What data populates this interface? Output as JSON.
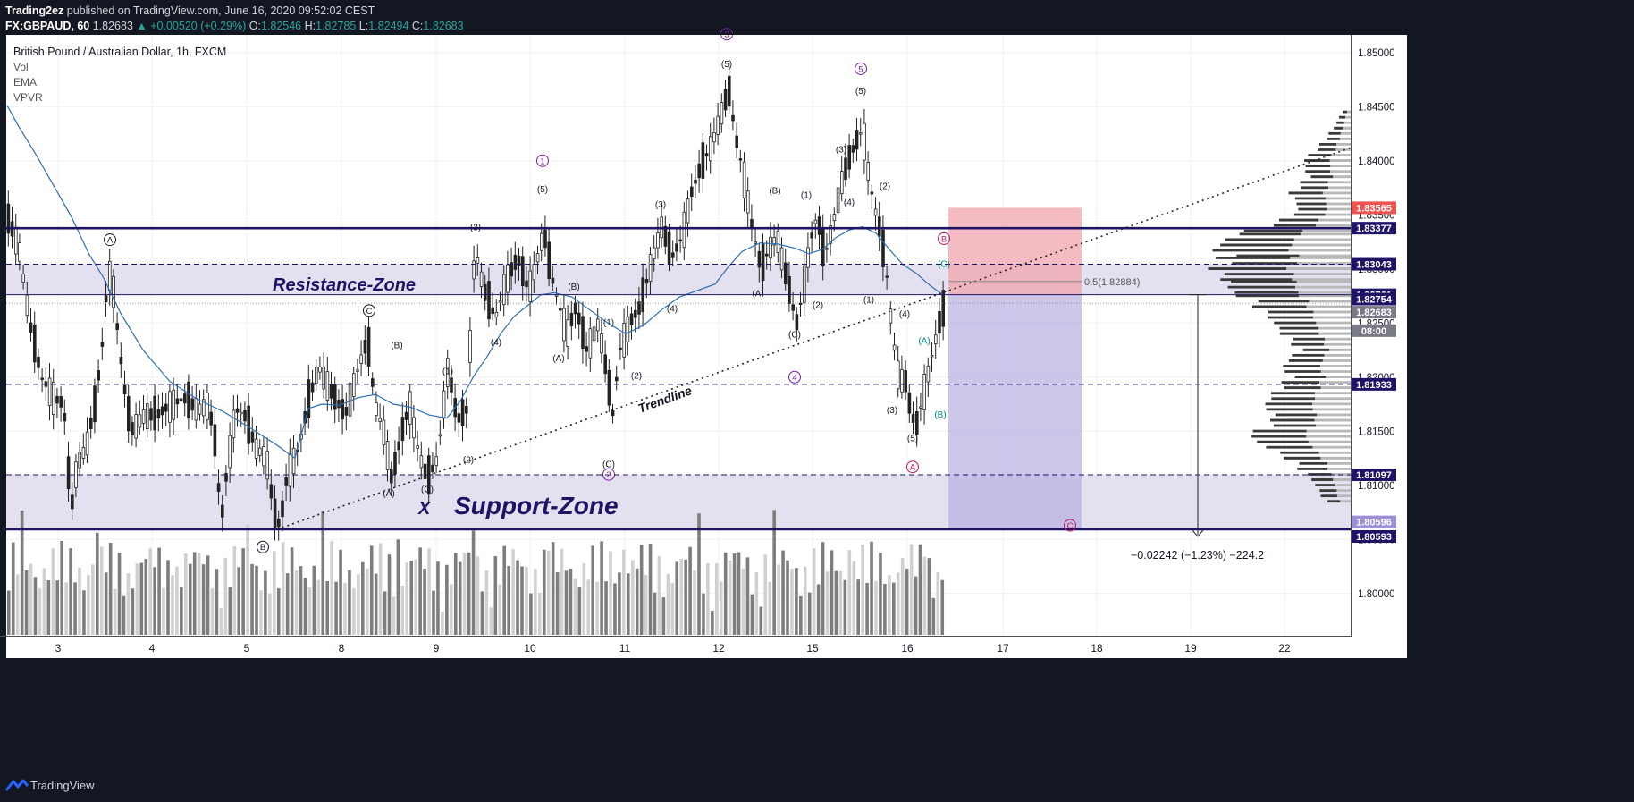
{
  "header": {
    "author": "Trading2ez",
    "published": "published on TradingView.com, June 16, 2020 09:52:02 CEST",
    "symbol": "FX:GBPAUD, 60",
    "last": "1.82683",
    "change": "▲ +0.00520 (+0.29%)",
    "o_label": "O:",
    "o": "1.82546",
    "h_label": "H:",
    "h": "1.82785",
    "l_label": "L:",
    "l": "1.82494",
    "c_label": "C:",
    "c": "1.82683"
  },
  "legend": {
    "title": "British Pound / Australian Dollar, 1h, FXCM",
    "indicators": [
      "Vol",
      "EMA",
      "VPVR"
    ]
  },
  "footer": {
    "brand": "TradingView"
  },
  "colors": {
    "background": "#ffffff",
    "frame": "#131722",
    "zone_fill": "#e4e0f0",
    "level_line": "#1e1466",
    "ema": "#2f6fb3",
    "target": "#f0a6ad",
    "stop": "#b7aee0",
    "wave_purple": "#7b1fa2",
    "wave_green": "#00897b",
    "wave_red": "#c2185b",
    "last_price": "#787b86"
  },
  "chart_data": {
    "type": "candlestick",
    "title": "British Pound / Australian Dollar, 1h, FXCM",
    "x_ticks": [
      "3",
      "4",
      "5",
      "8",
      "9",
      "10",
      "11",
      "12",
      "15",
      "16",
      "17",
      "18",
      "19",
      "22"
    ],
    "y_ticks": [
      "1.85000",
      "1.84500",
      "1.84000",
      "1.83500",
      "1.83000",
      "1.82500",
      "1.82000",
      "1.81500",
      "1.81000",
      "1.80500",
      "1.80000"
    ],
    "ylim": [
      1.7962,
      1.8543
    ],
    "grid": true,
    "price_labels": [
      {
        "text": "1.83565",
        "value": 1.83565,
        "color": "#ef5350"
      },
      {
        "text": "1.83377",
        "value": 1.83377,
        "color": "#1e1466"
      },
      {
        "text": "1.83043",
        "value": 1.83043,
        "color": "#1e1466"
      },
      {
        "text": "1.82761",
        "value": 1.82761,
        "color": "#1e1466"
      },
      {
        "text": "1.82754",
        "value": 1.82754,
        "color": "#1e1466"
      },
      {
        "text": "1.82683",
        "value": 1.82683,
        "color": "#787b86"
      },
      {
        "text": "08:00",
        "value": 1.82553,
        "color": "#787b86"
      },
      {
        "text": "1.81933",
        "value": 1.81933,
        "color": "#1e1466"
      },
      {
        "text": "1.81097",
        "value": 1.81097,
        "color": "#1e1466"
      },
      {
        "text": "1.80596",
        "value": 1.80596,
        "color": "#9c8fd6"
      },
      {
        "text": "1.80593",
        "value": 1.80593,
        "color": "#1e1466"
      }
    ],
    "levels": {
      "solid": [
        1.83377,
        1.82761,
        1.80593
      ],
      "dashed": [
        1.83043,
        1.81933,
        1.81097
      ]
    },
    "zones": [
      {
        "label": "Resistance-Zone",
        "from": 1.82761,
        "to": 1.83043
      },
      {
        "label": "Support-Zone",
        "from": 1.80593,
        "to": 1.81097
      }
    ],
    "x_markers": [
      "X"
    ],
    "trendline_label": "Trendline",
    "fib_label": "0.5(1.82884)",
    "measure_label": "−0.02242 (−1.23%) −224.2",
    "wave_labels": [
      {
        "t": "A",
        "cx": 123,
        "v": 1.8327,
        "c": "#131722",
        "circle": true
      },
      {
        "t": "C",
        "cx": 413,
        "v": 1.82615,
        "c": "#131722",
        "circle": true
      },
      {
        "t": "B",
        "cx": 294,
        "v": 1.8043,
        "c": "#131722",
        "circle": true
      },
      {
        "t": "1",
        "cx": 607,
        "v": 1.84,
        "c": "#7b1fa2",
        "circle": true
      },
      {
        "t": "2",
        "cx": 681,
        "v": 1.811,
        "c": "#7b1fa2",
        "circle": true
      },
      {
        "t": "3",
        "cx": 813,
        "v": 1.8517,
        "c": "#7b1fa2",
        "circle": true
      },
      {
        "t": "4",
        "cx": 889,
        "v": 1.82,
        "c": "#7b1fa2",
        "circle": true
      },
      {
        "t": "5",
        "cx": 963,
        "v": 1.8485,
        "c": "#7b1fa2",
        "circle": true
      },
      {
        "t": "B",
        "cx": 1056,
        "v": 1.8328,
        "c": "#c2185b",
        "circle": true
      },
      {
        "t": "A",
        "cx": 1021,
        "v": 1.8117,
        "c": "#c2185b",
        "circle": true
      },
      {
        "t": "C",
        "cx": 1197,
        "v": 1.8063,
        "c": "#c2185b",
        "circle": true
      },
      {
        "t": "(5)",
        "cx": 607,
        "v": 1.8374,
        "c": "#131722",
        "circle": false
      },
      {
        "t": "(3)",
        "cx": 532,
        "v": 1.8339,
        "c": "#131722",
        "circle": false
      },
      {
        "t": "(4)",
        "cx": 555,
        "v": 1.8233,
        "c": "#131722",
        "circle": false
      },
      {
        "t": "(B)",
        "cx": 642,
        "v": 1.8284,
        "c": "#131722",
        "circle": false
      },
      {
        "t": "(A)",
        "cx": 625,
        "v": 1.8218,
        "c": "#131722",
        "circle": false
      },
      {
        "t": "(1)",
        "cx": 681,
        "v": 1.8251,
        "c": "#131722",
        "circle": false
      },
      {
        "t": "(2)",
        "cx": 712,
        "v": 1.8202,
        "c": "#131722",
        "circle": false
      },
      {
        "t": "(3)",
        "cx": 739,
        "v": 1.836,
        "c": "#131722",
        "circle": false
      },
      {
        "t": "(4)",
        "cx": 752,
        "v": 1.8264,
        "c": "#131722",
        "circle": false
      },
      {
        "t": "(5)",
        "cx": 813,
        "v": 1.849,
        "c": "#131722",
        "circle": false
      },
      {
        "t": "(B)",
        "cx": 867,
        "v": 1.8373,
        "c": "#131722",
        "circle": false
      },
      {
        "t": "(A)",
        "cx": 848,
        "v": 1.8278,
        "c": "#131722",
        "circle": false
      },
      {
        "t": "(C)",
        "cx": 889,
        "v": 1.824,
        "c": "#131722",
        "circle": false
      },
      {
        "t": "(1)",
        "cx": 902,
        "v": 1.8369,
        "c": "#131722",
        "circle": false
      },
      {
        "t": "(2)",
        "cx": 915,
        "v": 1.8267,
        "c": "#131722",
        "circle": false
      },
      {
        "t": "(3)",
        "cx": 941,
        "v": 1.8411,
        "c": "#131722",
        "circle": false
      },
      {
        "t": "(4)",
        "cx": 950,
        "v": 1.8362,
        "c": "#131722",
        "circle": false
      },
      {
        "t": "(5)",
        "cx": 963,
        "v": 1.8465,
        "c": "#131722",
        "circle": false
      },
      {
        "t": "(2)",
        "cx": 990,
        "v": 1.8377,
        "c": "#131722",
        "circle": false
      },
      {
        "t": "(1)",
        "cx": 972,
        "v": 1.8272,
        "c": "#131722",
        "circle": false
      },
      {
        "t": "(4)",
        "cx": 1012,
        "v": 1.8259,
        "c": "#131722",
        "circle": false
      },
      {
        "t": "(3)",
        "cx": 998,
        "v": 1.817,
        "c": "#131722",
        "circle": false
      },
      {
        "t": "(5)",
        "cx": 1021,
        "v": 1.8144,
        "c": "#131722",
        "circle": false
      },
      {
        "t": "(A)",
        "cx": 1034,
        "v": 1.8234,
        "c": "#00897b",
        "circle": false
      },
      {
        "t": "(B)",
        "cx": 1052,
        "v": 1.8166,
        "c": "#00897b",
        "circle": false
      },
      {
        "t": "(C)",
        "cx": 1056,
        "v": 1.8305,
        "c": "#00897b",
        "circle": false
      },
      {
        "t": "(B)",
        "cx": 444,
        "v": 1.823,
        "c": "#131722",
        "circle": false
      },
      {
        "t": "(A)",
        "cx": 435,
        "v": 1.8093,
        "c": "#131722",
        "circle": false
      },
      {
        "t": "(C)",
        "cx": 478,
        "v": 1.8097,
        "c": "#131722",
        "circle": false
      },
      {
        "t": "(1)",
        "cx": 501,
        "v": 1.8206,
        "c": "#131722",
        "circle": false
      },
      {
        "t": "(2)",
        "cx": 524,
        "v": 1.8124,
        "c": "#131722",
        "circle": false
      },
      {
        "t": "(C)",
        "cx": 681,
        "v": 1.812,
        "c": "#131722",
        "circle": false
      }
    ],
    "ema_series": [
      [
        8,
        1.8451
      ],
      [
        20,
        1.8433
      ],
      [
        40,
        1.8406
      ],
      [
        60,
        1.8377
      ],
      [
        80,
        1.8348
      ],
      [
        100,
        1.8313
      ],
      [
        115,
        1.8293
      ],
      [
        135,
        1.8259
      ],
      [
        160,
        1.8225
      ],
      [
        190,
        1.8196
      ],
      [
        220,
        1.818
      ],
      [
        250,
        1.8168
      ],
      [
        280,
        1.8153
      ],
      [
        310,
        1.8137
      ],
      [
        330,
        1.8125
      ],
      [
        345,
        1.8171
      ],
      [
        360,
        1.8175
      ],
      [
        380,
        1.8174
      ],
      [
        400,
        1.8181
      ],
      [
        420,
        1.8184
      ],
      [
        440,
        1.8175
      ],
      [
        460,
        1.8172
      ],
      [
        480,
        1.8165
      ],
      [
        500,
        1.8162
      ],
      [
        515,
        1.8178
      ],
      [
        530,
        1.8201
      ],
      [
        545,
        1.8219
      ],
      [
        560,
        1.824
      ],
      [
        575,
        1.8256
      ],
      [
        590,
        1.8266
      ],
      [
        605,
        1.8276
      ],
      [
        620,
        1.8278
      ],
      [
        640,
        1.8274
      ],
      [
        660,
        1.8262
      ],
      [
        680,
        1.825
      ],
      [
        700,
        1.824
      ],
      [
        720,
        1.8248
      ],
      [
        740,
        1.8262
      ],
      [
        760,
        1.8274
      ],
      [
        780,
        1.828
      ],
      [
        800,
        1.8286
      ],
      [
        815,
        1.8302
      ],
      [
        830,
        1.8316
      ],
      [
        850,
        1.8324
      ],
      [
        870,
        1.8323
      ],
      [
        890,
        1.8319
      ],
      [
        905,
        1.8314
      ],
      [
        920,
        1.8318
      ],
      [
        935,
        1.8329
      ],
      [
        950,
        1.8336
      ],
      [
        965,
        1.8339
      ],
      [
        980,
        1.8333
      ],
      [
        995,
        1.8318
      ],
      [
        1010,
        1.8304
      ],
      [
        1025,
        1.8296
      ],
      [
        1040,
        1.8285
      ],
      [
        1055,
        1.8276
      ]
    ],
    "price_path": [
      [
        8,
        1.8345
      ],
      [
        20,
        1.832
      ],
      [
        32,
        1.825
      ],
      [
        45,
        1.82
      ],
      [
        60,
        1.818
      ],
      [
        70,
        1.8175
      ],
      [
        78,
        1.8075
      ],
      [
        85,
        1.812
      ],
      [
        95,
        1.8135
      ],
      [
        105,
        1.8175
      ],
      [
        113,
        1.823
      ],
      [
        118,
        1.828
      ],
      [
        123,
        1.8302
      ],
      [
        128,
        1.826
      ],
      [
        136,
        1.82
      ],
      [
        145,
        1.815
      ],
      [
        160,
        1.8165
      ],
      [
        175,
        1.8165
      ],
      [
        190,
        1.8175
      ],
      [
        205,
        1.818
      ],
      [
        220,
        1.817
      ],
      [
        232,
        1.8175
      ],
      [
        240,
        1.8135
      ],
      [
        246,
        1.8065
      ],
      [
        252,
        1.811
      ],
      [
        262,
        1.817
      ],
      [
        272,
        1.8165
      ],
      [
        285,
        1.8135
      ],
      [
        297,
        1.8125
      ],
      [
        305,
        1.8075
      ],
      [
        312,
        1.8062
      ],
      [
        320,
        1.811
      ],
      [
        333,
        1.8135
      ],
      [
        343,
        1.8175
      ],
      [
        355,
        1.821
      ],
      [
        370,
        1.8185
      ],
      [
        385,
        1.8165
      ],
      [
        398,
        1.8205
      ],
      [
        410,
        1.8235
      ],
      [
        418,
        1.8175
      ],
      [
        428,
        1.815
      ],
      [
        437,
        1.8105
      ],
      [
        447,
        1.8145
      ],
      [
        457,
        1.8175
      ],
      [
        467,
        1.813
      ],
      [
        477,
        1.8105
      ],
      [
        488,
        1.8125
      ],
      [
        500,
        1.821
      ],
      [
        510,
        1.816
      ],
      [
        521,
        1.817
      ],
      [
        530,
        1.832
      ],
      [
        540,
        1.828
      ],
      [
        553,
        1.8255
      ],
      [
        565,
        1.829
      ],
      [
        578,
        1.831
      ],
      [
        590,
        1.828
      ],
      [
        600,
        1.831
      ],
      [
        607,
        1.8335
      ],
      [
        615,
        1.8295
      ],
      [
        623,
        1.827
      ],
      [
        633,
        1.824
      ],
      [
        643,
        1.8265
      ],
      [
        655,
        1.8225
      ],
      [
        668,
        1.825
      ],
      [
        678,
        1.82
      ],
      [
        684,
        1.8165
      ],
      [
        692,
        1.8225
      ],
      [
        703,
        1.825
      ],
      [
        715,
        1.8265
      ],
      [
        727,
        1.8305
      ],
      [
        739,
        1.834
      ],
      [
        750,
        1.831
      ],
      [
        762,
        1.833
      ],
      [
        772,
        1.837
      ],
      [
        783,
        1.8395
      ],
      [
        795,
        1.8415
      ],
      [
        806,
        1.8445
      ],
      [
        814,
        1.8465
      ],
      [
        822,
        1.842
      ],
      [
        830,
        1.839
      ],
      [
        840,
        1.834
      ],
      [
        850,
        1.83
      ],
      [
        860,
        1.832
      ],
      [
        868,
        1.833
      ],
      [
        876,
        1.83
      ],
      [
        884,
        1.827
      ],
      [
        890,
        1.825
      ],
      [
        897,
        1.828
      ],
      [
        905,
        1.8325
      ],
      [
        913,
        1.835
      ],
      [
        921,
        1.831
      ],
      [
        930,
        1.834
      ],
      [
        940,
        1.838
      ],
      [
        950,
        1.8405
      ],
      [
        958,
        1.842
      ],
      [
        964,
        1.843
      ],
      [
        970,
        1.839
      ],
      [
        976,
        1.836
      ],
      [
        982,
        1.834
      ],
      [
        990,
        1.83
      ],
      [
        997,
        1.824
      ],
      [
        1004,
        1.82
      ],
      [
        1012,
        1.8195
      ],
      [
        1018,
        1.8165
      ],
      [
        1024,
        1.8155
      ],
      [
        1032,
        1.8185
      ],
      [
        1040,
        1.8215
      ],
      [
        1048,
        1.8245
      ],
      [
        1056,
        1.8268
      ]
    ],
    "profile_ranges": [
      [
        1.8085,
        30
      ],
      [
        1.8105,
        45
      ],
      [
        1.8125,
        75
      ],
      [
        1.8145,
        120
      ],
      [
        1.816,
        90
      ],
      [
        1.8175,
        100
      ],
      [
        1.819,
        85
      ],
      [
        1.82,
        70
      ],
      [
        1.821,
        80
      ],
      [
        1.8225,
        60
      ],
      [
        1.824,
        80
      ],
      [
        1.8255,
        95
      ],
      [
        1.8265,
        110
      ],
      [
        1.8278,
        135
      ],
      [
        1.829,
        150
      ],
      [
        1.83,
        160
      ],
      [
        1.8312,
        150
      ],
      [
        1.8322,
        160
      ],
      [
        1.8335,
        120
      ],
      [
        1.8345,
        80
      ],
      [
        1.8355,
        60
      ],
      [
        1.837,
        70
      ],
      [
        1.8385,
        50
      ],
      [
        1.84,
        55
      ],
      [
        1.8415,
        35
      ],
      [
        1.843,
        20
      ],
      [
        1.8445,
        10
      ]
    ]
  }
}
